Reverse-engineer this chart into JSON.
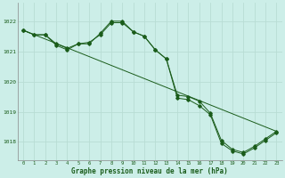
{
  "title": "Graphe pression niveau de la mer (hPa)",
  "background_color": "#cceee8",
  "grid_color": "#aaddcc",
  "line_color": "#1a5c1a",
  "x_ticks": [
    0,
    1,
    2,
    3,
    4,
    5,
    6,
    7,
    8,
    9,
    10,
    11,
    12,
    13,
    14,
    15,
    16,
    17,
    18,
    19,
    20,
    21,
    22,
    23
  ],
  "ylim": [
    1017.4,
    1022.6
  ],
  "xlim": [
    -0.5,
    23.5
  ],
  "yticks": [
    1018,
    1019,
    1020,
    1021,
    1022
  ],
  "series1": {
    "x": [
      0,
      1,
      2,
      3,
      4,
      5,
      6,
      7,
      8,
      9,
      10,
      11,
      12,
      13,
      14,
      15,
      16,
      17,
      18,
      19,
      20,
      21,
      22,
      23
    ],
    "y": [
      1021.7,
      1021.55,
      1021.55,
      1021.25,
      1021.1,
      1021.25,
      1021.3,
      1021.55,
      1021.95,
      1021.95,
      1021.65,
      1021.5,
      1021.05,
      1020.75,
      1019.55,
      1019.5,
      1019.35,
      1018.95,
      1018.05,
      1017.75,
      1017.65,
      1017.85,
      1018.1,
      1018.35
    ]
  },
  "series2": {
    "x": [
      0,
      1,
      2,
      3,
      4,
      5,
      6,
      7,
      8,
      9,
      10,
      11,
      12,
      13,
      14,
      15,
      16,
      17,
      18,
      19,
      20,
      21,
      22,
      23
    ],
    "y": [
      1021.7,
      1021.55,
      1021.55,
      1021.2,
      1021.05,
      1021.25,
      1021.25,
      1021.6,
      1022.0,
      1022.0,
      1021.65,
      1021.5,
      1021.05,
      1020.75,
      1019.45,
      1019.4,
      1019.2,
      1018.9,
      1017.95,
      1017.7,
      1017.6,
      1017.8,
      1018.05,
      1018.3
    ]
  },
  "series3": {
    "x": [
      0,
      23
    ],
    "y": [
      1021.7,
      1018.35
    ]
  }
}
